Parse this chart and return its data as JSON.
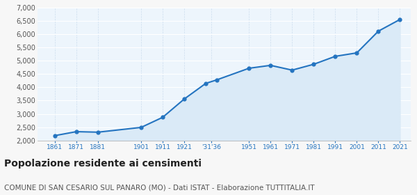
{
  "years": [
    1861,
    1871,
    1881,
    1901,
    1911,
    1921,
    1931,
    1936,
    1951,
    1961,
    1971,
    1981,
    1991,
    2001,
    2011,
    2021
  ],
  "population": [
    2180,
    2330,
    2310,
    2490,
    2870,
    3560,
    4150,
    4280,
    4720,
    4830,
    4650,
    4870,
    5170,
    5300,
    6120,
    6560
  ],
  "x_tick_labels": [
    "1861",
    "1871",
    "1881",
    "1901",
    "1911",
    "1921",
    "'31'36",
    "1951",
    "1961",
    "1971",
    "1981",
    "1991",
    "2001",
    "2011",
    "2021"
  ],
  "x_tick_positions": [
    1861,
    1871,
    1881,
    1901,
    1911,
    1921,
    1933.5,
    1951,
    1961,
    1971,
    1981,
    1991,
    2001,
    2011,
    2021
  ],
  "ylim": [
    2000,
    7000
  ],
  "yticks": [
    2000,
    2500,
    3000,
    3500,
    4000,
    4500,
    5000,
    5500,
    6000,
    6500,
    7000
  ],
  "line_color": "#2474c0",
  "fill_color": "#daeaf7",
  "marker_color": "#2474c0",
  "bg_color": "#edf5fc",
  "grid_color": "#ffffff",
  "tick_color": "#2474c0",
  "title": "Popolazione residente ai censimenti",
  "subtitle": "COMUNE DI SAN CESARIO SUL PANARO (MO) - Dati ISTAT - Elaborazione TUTTITALIA.IT",
  "title_fontsize": 10,
  "subtitle_fontsize": 7.5,
  "xlim_left": 1853,
  "xlim_right": 2026
}
